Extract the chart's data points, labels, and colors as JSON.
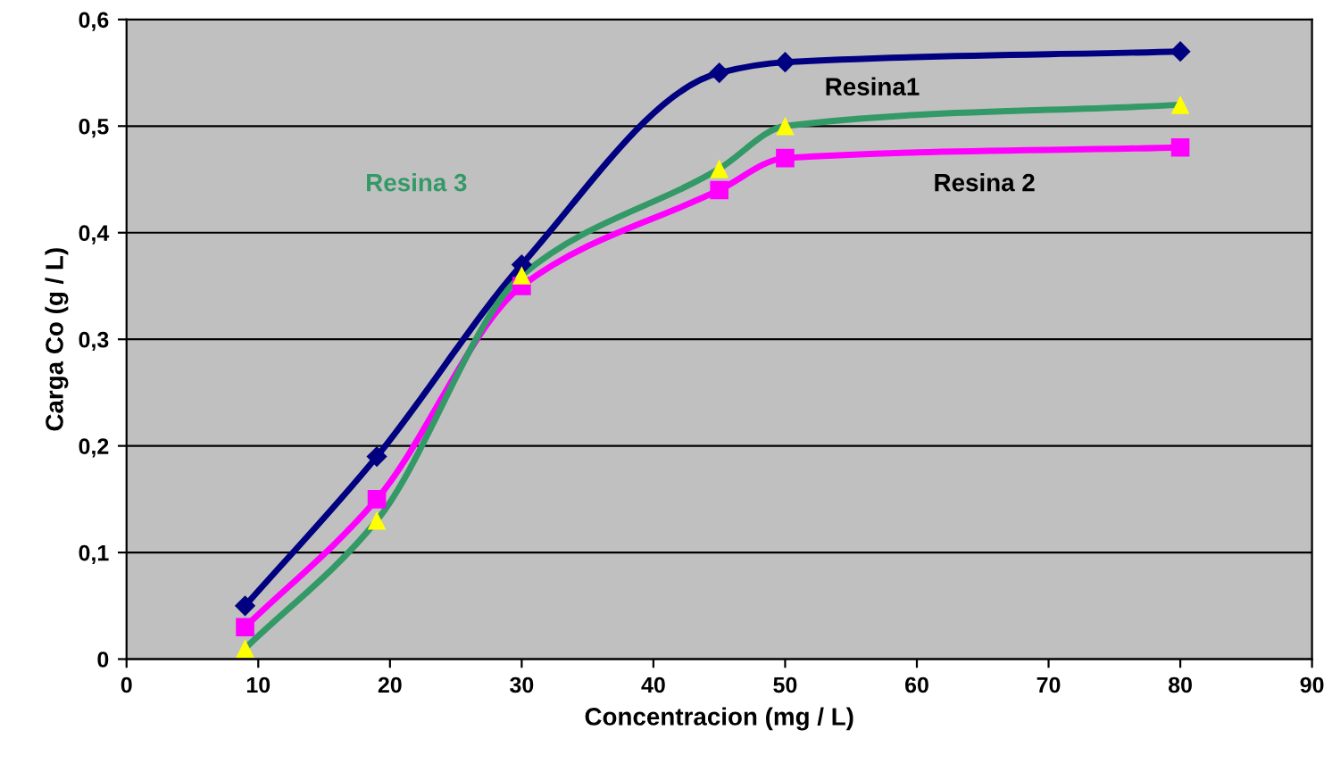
{
  "chart_data": {
    "type": "line",
    "xlabel": "Concentracion (mg / L)",
    "ylabel": "Carga Co (g / L)",
    "xlim": [
      0,
      90
    ],
    "xticks": [
      0,
      10,
      20,
      30,
      40,
      50,
      60,
      70,
      80,
      90
    ],
    "ylim": [
      0,
      0.6
    ],
    "yticks": [
      0,
      {
        "value": 0.1,
        "label": "0,1"
      },
      {
        "value": 0.2,
        "label": "0,2"
      },
      {
        "value": 0.3,
        "label": "0,3"
      },
      {
        "value": 0.4,
        "label": "0,4"
      },
      {
        "value": 0.5,
        "label": "0,5"
      },
      {
        "value": 0.6,
        "label": "0,6"
      }
    ],
    "grid": "y",
    "legend": false,
    "x": [
      9,
      19,
      30,
      45,
      50,
      80
    ],
    "series": [
      {
        "name": "Resina1",
        "color": "#000080",
        "marker": "diamond",
        "values": [
          0.05,
          0.19,
          0.37,
          0.55,
          0.56,
          0.57
        ]
      },
      {
        "name": "Resina 2",
        "color": "#ff00ff",
        "marker": "square",
        "values": [
          0.03,
          0.15,
          0.35,
          0.44,
          0.47,
          0.48
        ]
      },
      {
        "name": "Resina 3",
        "color": "#339966",
        "colors": [
          "#ffff00",
          "#ffff00",
          "#ffff00",
          "#ffff00",
          "#ffff00",
          "#ffff00"
        ],
        "marker": "triangle",
        "values": [
          0.01,
          0.13,
          0.36,
          0.46,
          0.5,
          0.52
        ]
      }
    ]
  }
}
